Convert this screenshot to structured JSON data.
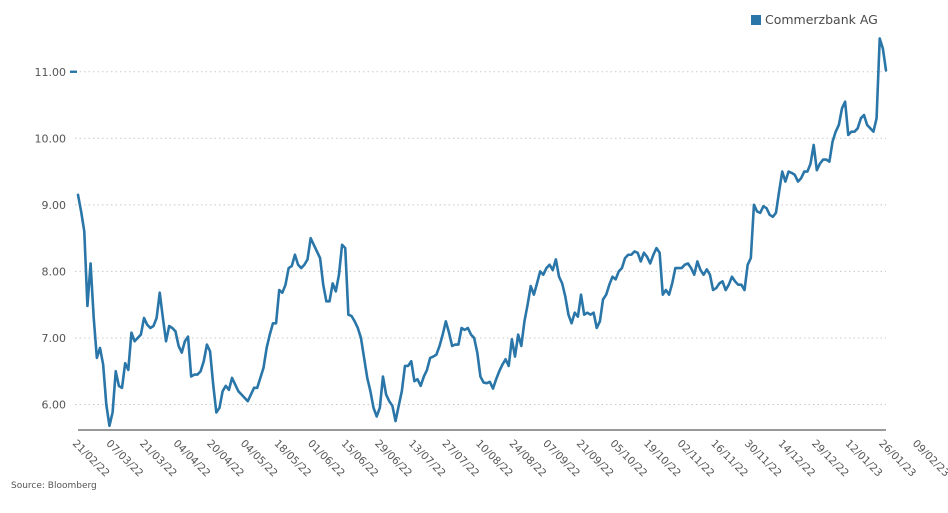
{
  "legend": {
    "label": "Commerzbank AG"
  },
  "source": "Source: Bloomberg",
  "colors": {
    "line": "#2a76a8",
    "grid": "#c8c8c8",
    "axis": "#333333",
    "tick_text": "#555555"
  },
  "chart_data": {
    "type": "line",
    "title": "",
    "xlabel": "",
    "ylabel": "",
    "ylim": [
      5.62,
      11.5
    ],
    "yticks": [
      "6.00",
      "7.00",
      "8.00",
      "9.00",
      "10.00",
      "11.00"
    ],
    "grid": true,
    "legend_position": "top-right",
    "x_tick_labels": [
      "21/02/22",
      "07/03/22",
      "21/03/22",
      "04/04/22",
      "20/04/22",
      "04/05/22",
      "18/05/22",
      "01/06/22",
      "15/06/22",
      "29/06/22",
      "13/07/22",
      "27/07/22",
      "10/08/22",
      "24/08/22",
      "07/09/22",
      "21/09/22",
      "05/10/22",
      "19/10/22",
      "02/11/22",
      "16/11/22",
      "30/11/22",
      "14/12/22",
      "29/12/22",
      "12/01/23",
      "26/01/23",
      "09/02/23"
    ],
    "series": [
      {
        "name": "Commerzbank AG",
        "values": [
          9.15,
          8.9,
          8.6,
          7.48,
          8.12,
          7.3,
          6.7,
          6.85,
          6.6,
          6.0,
          5.68,
          5.88,
          6.5,
          6.28,
          6.25,
          6.62,
          6.52,
          7.08,
          6.95,
          7.0,
          7.05,
          7.3,
          7.2,
          7.15,
          7.18,
          7.3,
          7.68,
          7.3,
          6.95,
          7.18,
          7.15,
          7.1,
          6.88,
          6.78,
          6.95,
          7.02,
          6.42,
          6.45,
          6.45,
          6.5,
          6.65,
          6.9,
          6.8,
          6.3,
          5.88,
          5.95,
          6.2,
          6.28,
          6.22,
          6.4,
          6.3,
          6.2,
          6.15,
          6.1,
          6.05,
          6.15,
          6.25,
          6.25,
          6.4,
          6.55,
          6.85,
          7.05,
          7.22,
          7.22,
          7.72,
          7.68,
          7.8,
          8.05,
          8.08,
          8.25,
          8.1,
          8.05,
          8.1,
          8.18,
          8.5,
          8.4,
          8.3,
          8.2,
          7.8,
          7.55,
          7.55,
          7.82,
          7.7,
          7.95,
          8.4,
          8.35,
          7.35,
          7.33,
          7.25,
          7.15,
          7.0,
          6.7,
          6.4,
          6.2,
          5.95,
          5.82,
          5.95,
          6.42,
          6.15,
          6.05,
          5.98,
          5.75,
          5.98,
          6.2,
          6.58,
          6.58,
          6.65,
          6.35,
          6.38,
          6.28,
          6.42,
          6.52,
          6.7,
          6.72,
          6.75,
          6.88,
          7.05,
          7.25,
          7.08,
          6.88,
          6.9,
          6.9,
          7.15,
          7.12,
          7.15,
          7.05,
          7.0,
          6.78,
          6.42,
          6.33,
          6.32,
          6.34,
          6.24,
          6.38,
          6.5,
          6.6,
          6.68,
          6.58,
          6.98,
          6.72,
          7.05,
          6.88,
          7.25,
          7.5,
          7.78,
          7.65,
          7.82,
          8.0,
          7.95,
          8.05,
          8.1,
          8.02,
          8.18,
          7.92,
          7.82,
          7.62,
          7.35,
          7.22,
          7.38,
          7.32,
          7.65,
          7.35,
          7.38,
          7.35,
          7.38,
          7.15,
          7.25,
          7.58,
          7.65,
          7.8,
          7.92,
          7.88,
          8.0,
          8.05,
          8.2,
          8.25,
          8.25,
          8.3,
          8.28,
          8.15,
          8.28,
          8.22,
          8.12,
          8.25,
          8.35,
          8.28,
          7.65,
          7.72,
          7.65,
          7.82,
          8.05,
          8.05,
          8.05,
          8.1,
          8.12,
          8.05,
          7.95,
          8.15,
          8.02,
          7.95,
          8.03,
          7.95,
          7.72,
          7.75,
          7.82,
          7.85,
          7.72,
          7.8,
          7.92,
          7.85,
          7.8,
          7.8,
          7.72,
          8.1,
          8.2,
          9.0,
          8.9,
          8.88,
          8.98,
          8.95,
          8.85,
          8.82,
          8.88,
          9.2,
          9.5,
          9.35,
          9.5,
          9.48,
          9.45,
          9.35,
          9.4,
          9.5,
          9.5,
          9.62,
          9.9,
          9.52,
          9.62,
          9.68,
          9.68,
          9.65,
          9.95,
          10.1,
          10.2,
          10.45,
          10.55,
          10.05,
          10.1,
          10.1,
          10.15,
          10.3,
          10.35,
          10.2,
          10.15,
          10.1,
          10.3,
          11.5,
          11.35,
          11.02
        ]
      }
    ]
  }
}
